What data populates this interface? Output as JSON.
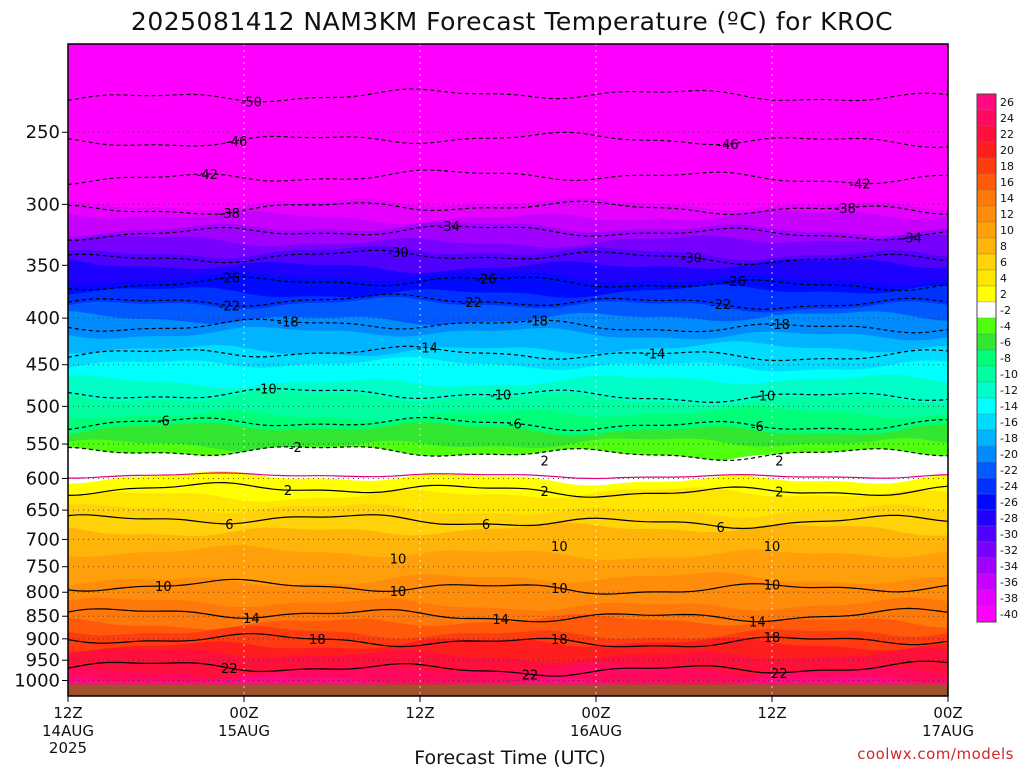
{
  "chart_data": {
    "type": "heatmap",
    "title": "2025081412 NAM3KM Forecast Temperature (ºC) for KROC",
    "xlabel": "Forecast Time (UTC)",
    "ylabel": "",
    "x_ticks": [
      {
        "label": "12Z",
        "sub": "14AUG",
        "sub2": "2025",
        "hours": 0
      },
      {
        "label": "00Z",
        "sub": "15AUG",
        "sub2": "",
        "hours": 12
      },
      {
        "label": "12Z",
        "sub": "",
        "sub2": "",
        "hours": 24
      },
      {
        "label": "00Z",
        "sub": "16AUG",
        "sub2": "",
        "hours": 36
      },
      {
        "label": "12Z",
        "sub": "",
        "sub2": "",
        "hours": 48
      },
      {
        "label": "00Z",
        "sub": "17AUG",
        "sub2": "",
        "hours": 60
      }
    ],
    "xlim_hours": [
      0,
      60
    ],
    "y_ticks_hPa": [
      250,
      300,
      350,
      400,
      450,
      500,
      550,
      600,
      650,
      700,
      750,
      800,
      850,
      900,
      950,
      1000
    ],
    "ylim_hPa": [
      200,
      1040
    ],
    "y_scale": "log",
    "grid": true,
    "ground_color": "#a0522d",
    "ground_top_hPa": 1010,
    "colorbar": {
      "labels": [
        "26",
        "24",
        "22",
        "20",
        "18",
        "16",
        "14",
        "12",
        "10",
        "8",
        "6",
        "4",
        "2",
        "-2",
        "-4",
        "-6",
        "-8",
        "-10",
        "-12",
        "-14",
        "-16",
        "-18",
        "-20",
        "-22",
        "-24",
        "-26",
        "-28",
        "-30",
        "-32",
        "-34",
        "-36",
        "-38",
        "-40"
      ],
      "colors": [
        "#ff0a82",
        "#ff0a5f",
        "#ff0f3c",
        "#ff1e1e",
        "#ff3c0f",
        "#ff5a0a",
        "#ff780a",
        "#ff8c0a",
        "#ffa00a",
        "#ffb40a",
        "#ffd20a",
        "#ffe600",
        "#ffff00",
        "#ffffff",
        "#50ff10",
        "#32e632",
        "#00ff78",
        "#00ffa0",
        "#00ffc8",
        "#00ffff",
        "#00dcff",
        "#00b4ff",
        "#008cff",
        "#005aff",
        "#0032ff",
        "#000aff",
        "#1e00ff",
        "#5000ff",
        "#7800ff",
        "#a000ff",
        "#c800ff",
        "#e600ff",
        "#ff00ff"
      ],
      "position": "right"
    },
    "temperature_profile": {
      "pressure_hPa": [
        200,
        250,
        300,
        350,
        400,
        450,
        500,
        550,
        575,
        600,
        650,
        700,
        750,
        800,
        850,
        900,
        950,
        1000
      ],
      "temp_C": [
        -52,
        -46,
        -38,
        -28,
        -20,
        -14,
        -9,
        -4,
        0,
        2,
        6,
        9,
        11,
        13,
        15,
        19,
        23,
        25
      ]
    },
    "contour_lines": [
      {
        "level": -50,
        "pressure_hPa": 228,
        "dashed": true,
        "labels_at_hours": [
          12.5
        ]
      },
      {
        "level": -46,
        "pressure_hPa": 255,
        "dashed": true,
        "labels_at_hours": [
          11.5,
          45
        ]
      },
      {
        "level": -42,
        "pressure_hPa": 280,
        "dashed": true,
        "labels_at_hours": [
          9.5,
          54
        ]
      },
      {
        "level": -38,
        "pressure_hPa": 303,
        "dashed": true,
        "labels_at_hours": [
          11,
          53
        ]
      },
      {
        "level": -34,
        "pressure_hPa": 322,
        "dashed": true,
        "labels_at_hours": [
          26,
          57.5
        ]
      },
      {
        "level": -30,
        "pressure_hPa": 343,
        "dashed": true,
        "labels_at_hours": [
          22.5,
          42.5
        ]
      },
      {
        "level": -26,
        "pressure_hPa": 366,
        "dashed": true,
        "labels_at_hours": [
          11,
          28.5,
          45.5
        ]
      },
      {
        "level": -22,
        "pressure_hPa": 384,
        "dashed": true,
        "labels_at_hours": [
          11,
          27.5,
          44.5
        ]
      },
      {
        "level": -18,
        "pressure_hPa": 408,
        "dashed": true,
        "labels_at_hours": [
          15,
          32,
          48.5
        ]
      },
      {
        "level": -14,
        "pressure_hPa": 438,
        "dashed": true,
        "labels_at_hours": [
          24.5,
          40
        ]
      },
      {
        "level": -10,
        "pressure_hPa": 486,
        "dashed": true,
        "labels_at_hours": [
          13.5,
          29.5,
          47.5
        ]
      },
      {
        "level": -6,
        "pressure_hPa": 523,
        "dashed": true,
        "labels_at_hours": [
          6.5,
          30.5,
          47
        ]
      },
      {
        "level": -2,
        "pressure_hPa": 562,
        "dashed": true,
        "labels_at_hours": [
          15.5
        ]
      },
      {
        "level": 2,
        "pressure_hPa": 618,
        "dashed": false,
        "labels_at_hours": [
          15,
          32.5,
          48.5
        ]
      },
      {
        "level": 6,
        "pressure_hPa": 668,
        "dashed": false,
        "labels_at_hours": [
          11,
          28.5,
          44.5
        ]
      },
      {
        "level": 10,
        "pressure_hPa": 790,
        "dashed": false,
        "labels_at_hours": [
          6.5,
          22.5,
          33.5,
          48
        ]
      },
      {
        "level": 14,
        "pressure_hPa": 848,
        "dashed": false,
        "labels_at_hours": [
          12.5,
          29.5,
          47
        ]
      },
      {
        "level": 18,
        "pressure_hPa": 905,
        "dashed": false,
        "labels_at_hours": [
          17,
          33.5,
          48
        ]
      },
      {
        "level": 22,
        "pressure_hPa": 970,
        "dashed": false,
        "labels_at_hours": [
          11,
          31.5,
          48.5
        ]
      }
    ],
    "mid_labels": [
      {
        "text": "2",
        "pressure_hPa": 573,
        "hours": 32.5
      },
      {
        "text": "2",
        "pressure_hPa": 573,
        "hours": 48.5
      },
      {
        "text": "10",
        "pressure_hPa": 735,
        "hours": 22.5
      },
      {
        "text": "10",
        "pressure_hPa": 712,
        "hours": 33.5
      },
      {
        "text": "10",
        "pressure_hPa": 712,
        "hours": 48
      }
    ]
  },
  "watermark": "coolwx.com/models"
}
